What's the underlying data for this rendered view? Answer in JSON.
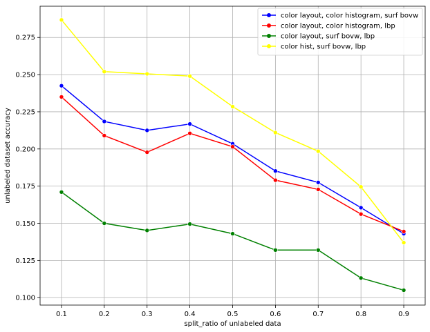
{
  "chart_data": {
    "type": "line",
    "title": "",
    "xlabel": "split_ratio of unlabeled data",
    "ylabel": "unlabeled dataset accuracy",
    "x": [
      0.1,
      0.2,
      0.3,
      0.4,
      0.5,
      0.6,
      0.7,
      0.8,
      0.9
    ],
    "xticks": [
      "0.1",
      "0.2",
      "0.3",
      "0.4",
      "0.5",
      "0.6",
      "0.7",
      "0.8",
      "0.9"
    ],
    "yticks": [
      "0.100",
      "0.125",
      "0.150",
      "0.175",
      "0.200",
      "0.225",
      "0.250",
      "0.275"
    ],
    "ytick_values": [
      0.1,
      0.125,
      0.15,
      0.175,
      0.2,
      0.225,
      0.25,
      0.275
    ],
    "xlim": [
      0.05,
      0.95
    ],
    "ylim": [
      0.095,
      0.296
    ],
    "grid": true,
    "legend_position": "top-right",
    "series": [
      {
        "name": "color layout, color histogram, surf bovw",
        "color": "#0000ff",
        "values": [
          0.2425,
          0.2185,
          0.2125,
          0.2168,
          0.2035,
          0.1852,
          0.1775,
          0.1605,
          0.143
        ]
      },
      {
        "name": "color layout, color histogram, lbp",
        "color": "#ff0000",
        "values": [
          0.235,
          0.209,
          0.1978,
          0.2105,
          0.2015,
          0.179,
          0.1728,
          0.1562,
          0.1445
        ]
      },
      {
        "name": "color layout, surf bovw, lbp",
        "color": "#008000",
        "values": [
          0.171,
          0.15,
          0.1452,
          0.1495,
          0.143,
          0.132,
          0.132,
          0.1132,
          0.105
        ]
      },
      {
        "name": "color hist, surf bovw, lbp",
        "color": "#ffff00",
        "values": [
          0.2868,
          0.252,
          0.2505,
          0.249,
          0.2285,
          0.211,
          0.1985,
          0.1745,
          0.137
        ]
      }
    ]
  }
}
